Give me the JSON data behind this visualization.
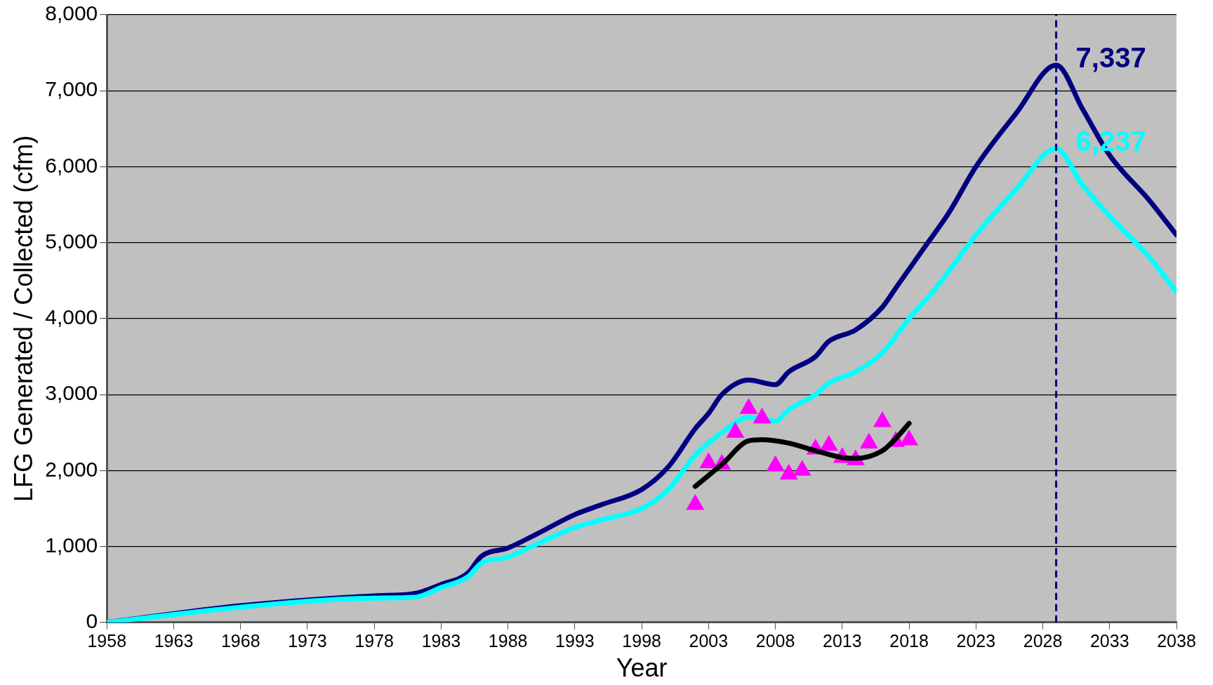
{
  "chart_data": {
    "type": "line",
    "xlabel": "Year",
    "ylabel": "LFG Generated / Collected (cfm)",
    "xlim": [
      1958,
      2038
    ],
    "xticks": [
      1958,
      1963,
      1968,
      1973,
      1978,
      1983,
      1988,
      1993,
      1998,
      2003,
      2008,
      2013,
      2018,
      2023,
      2028,
      2033,
      2038
    ],
    "ylim": [
      0,
      8000
    ],
    "yticks": [
      {
        "value": 0,
        "label": "0"
      },
      {
        "value": 1000,
        "label": "1,000"
      },
      {
        "value": 2000,
        "label": "2,000"
      },
      {
        "value": 3000,
        "label": "3,000"
      },
      {
        "value": 4000,
        "label": "4,000"
      },
      {
        "value": 5000,
        "label": "5,000"
      },
      {
        "value": 6000,
        "label": "6,000"
      },
      {
        "value": 7000,
        "label": "7,000"
      },
      {
        "value": 8000,
        "label": "8,000"
      }
    ],
    "grid": "y",
    "legend": false,
    "marker": "none",
    "line_style": "solid",
    "series": [
      {
        "color": "#000080",
        "x": [
          1958,
          1968,
          1978,
          1981,
          1983,
          1985,
          1986,
          1988,
          1990,
          1993,
          1995,
          1998,
          2000,
          2002,
          2003,
          2004,
          2006,
          2008,
          2009,
          2011,
          2012,
          2014,
          2016,
          2017,
          2019,
          2021,
          2023,
          2026,
          2029,
          2031,
          2033,
          2036,
          2038
        ],
        "values": [
          0,
          220,
          350,
          380,
          500,
          650,
          870,
          980,
          1150,
          1420,
          1550,
          1750,
          2050,
          2550,
          2750,
          3000,
          3190,
          3130,
          3300,
          3500,
          3700,
          3850,
          4150,
          4400,
          4900,
          5400,
          6000,
          6700,
          7337,
          6750,
          6150,
          5550,
          5100
        ]
      },
      {
        "color": "#00ffff",
        "x": [
          1958,
          1968,
          1978,
          1981,
          1983,
          1985,
          1986,
          1988,
          1990,
          1993,
          1995,
          1998,
          2000,
          2002,
          2004,
          2006,
          2008,
          2009,
          2011,
          2012,
          2014,
          2016,
          2018,
          2020,
          2023,
          2026,
          2029,
          2031,
          2033,
          2036,
          2038
        ],
        "values": [
          0,
          200,
          320,
          330,
          460,
          600,
          780,
          860,
          1020,
          1250,
          1350,
          1500,
          1750,
          2200,
          2500,
          2700,
          2650,
          2800,
          3000,
          3150,
          3300,
          3550,
          4000,
          4400,
          5100,
          5700,
          6237,
          5750,
          5350,
          4800,
          4350
        ]
      },
      {
        "type": "scatter",
        "marker": "triangle",
        "color": "#ff00ff",
        "x": [
          2002,
          2003,
          2004,
          2005,
          2006,
          2007,
          2008,
          2009,
          2010,
          2011,
          2012,
          2013,
          2014,
          2015,
          2016,
          2017,
          2018
        ],
        "values": [
          1550,
          2100,
          2080,
          2500,
          2815,
          2690,
          2060,
          1950,
          2000,
          2280,
          2330,
          2170,
          2140,
          2360,
          2640,
          2380,
          2400
        ]
      },
      {
        "color": "#000000",
        "x": [
          2002,
          2004,
          2006,
          2007,
          2009,
          2011,
          2013,
          2014,
          2016,
          2017,
          2018
        ],
        "values": [
          1790,
          2080,
          2390,
          2405,
          2360,
          2260,
          2170,
          2160,
          2260,
          2420,
          2620
        ]
      }
    ],
    "ref_lines": [
      {
        "axis": "x",
        "value": 2029,
        "color": "#000080",
        "line_style": "dashed"
      }
    ],
    "annotations": [
      {
        "text": "7,337",
        "x": 2029,
        "y": 7337
      },
      {
        "text": "6,237",
        "x": 2029,
        "y": 6237
      }
    ]
  }
}
